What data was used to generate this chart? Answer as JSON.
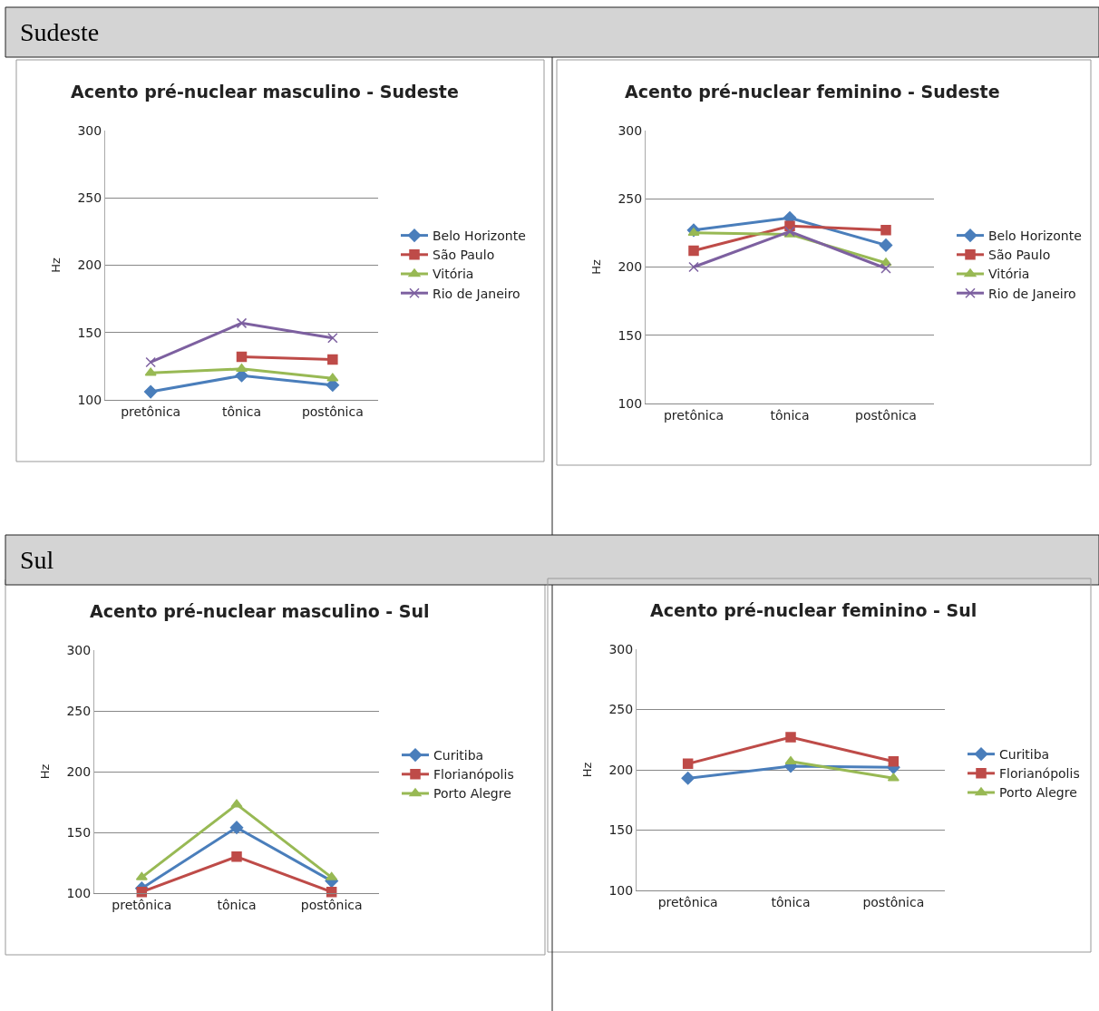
{
  "chart_data": [
    {
      "type": "line",
      "title": "Acento pré-nuclear masculino - Sudeste",
      "ylabel": "Hz",
      "annotations": [
        "Sudeste"
      ],
      "categories": [
        "pretônica",
        "tônica",
        "postônica"
      ],
      "ylim": [
        100,
        300
      ],
      "yticks": [
        100,
        150,
        200,
        250,
        300
      ],
      "grid": "y",
      "legend": "right",
      "series": [
        {
          "name": "Belo Horizonte",
          "color": "#4a7ebb",
          "marker": "diamond",
          "values": [
            106,
            118,
            111
          ]
        },
        {
          "name": "São Paulo",
          "color": "#be4b48",
          "marker": "square",
          "values": [
            null,
            132,
            130
          ]
        },
        {
          "name": "Vitória",
          "color": "#98b954",
          "marker": "triangle",
          "values": [
            120,
            123,
            116
          ]
        },
        {
          "name": "Rio de Janeiro",
          "color": "#7d60a0",
          "marker": "cross",
          "values": [
            128,
            157,
            146
          ]
        }
      ]
    },
    {
      "type": "line",
      "title": "Acento pré-nuclear feminino - Sudeste",
      "ylabel": "Hz",
      "categories": [
        "pretônica",
        "tônica",
        "postônica"
      ],
      "ylim": [
        100,
        300
      ],
      "yticks": [
        100,
        150,
        200,
        250,
        300
      ],
      "grid": "y",
      "legend": "right",
      "series": [
        {
          "name": "Belo Horizonte",
          "color": "#4a7ebb",
          "marker": "diamond",
          "values": [
            227,
            236,
            216
          ]
        },
        {
          "name": "São Paulo",
          "color": "#be4b48",
          "marker": "square",
          "values": [
            212,
            230,
            227
          ]
        },
        {
          "name": "Vitória",
          "color": "#98b954",
          "marker": "triangle",
          "values": [
            225,
            224,
            203
          ]
        },
        {
          "name": "Rio de Janeiro",
          "color": "#7d60a0",
          "marker": "cross",
          "values": [
            200,
            226,
            199
          ]
        }
      ]
    },
    {
      "type": "line",
      "title": "Acento pré-nuclear masculino - Sul",
      "ylabel": "Hz",
      "annotations": [
        "Sul"
      ],
      "categories": [
        "pretônica",
        "tônica",
        "postônica"
      ],
      "ylim": [
        100,
        300
      ],
      "yticks": [
        100,
        150,
        200,
        250,
        300
      ],
      "grid": "y",
      "legend": "right",
      "series": [
        {
          "name": "Curitiba",
          "color": "#4a7ebb",
          "marker": "diamond",
          "values": [
            104,
            154,
            110
          ]
        },
        {
          "name": "Florianópolis",
          "color": "#be4b48",
          "marker": "square",
          "values": [
            101,
            130,
            101
          ]
        },
        {
          "name": "Porto Alegre",
          "color": "#98b954",
          "marker": "triangle",
          "values": [
            113,
            173,
            113
          ]
        }
      ]
    },
    {
      "type": "line",
      "title": "Acento pré-nuclear feminino - Sul",
      "ylabel": "Hz",
      "categories": [
        "pretônica",
        "tônica",
        "postônica"
      ],
      "ylim": [
        100,
        300
      ],
      "yticks": [
        100,
        150,
        200,
        250,
        300
      ],
      "grid": "y",
      "legend": "right",
      "series": [
        {
          "name": "Curitiba",
          "color": "#4a7ebb",
          "marker": "diamond",
          "values": [
            193,
            203,
            202
          ]
        },
        {
          "name": "Florianópolis",
          "color": "#be4b48",
          "marker": "square",
          "values": [
            205,
            227,
            207
          ]
        },
        {
          "name": "Porto Alegre",
          "color": "#98b954",
          "marker": "triangle",
          "values": [
            null,
            207,
            193
          ]
        }
      ]
    }
  ]
}
